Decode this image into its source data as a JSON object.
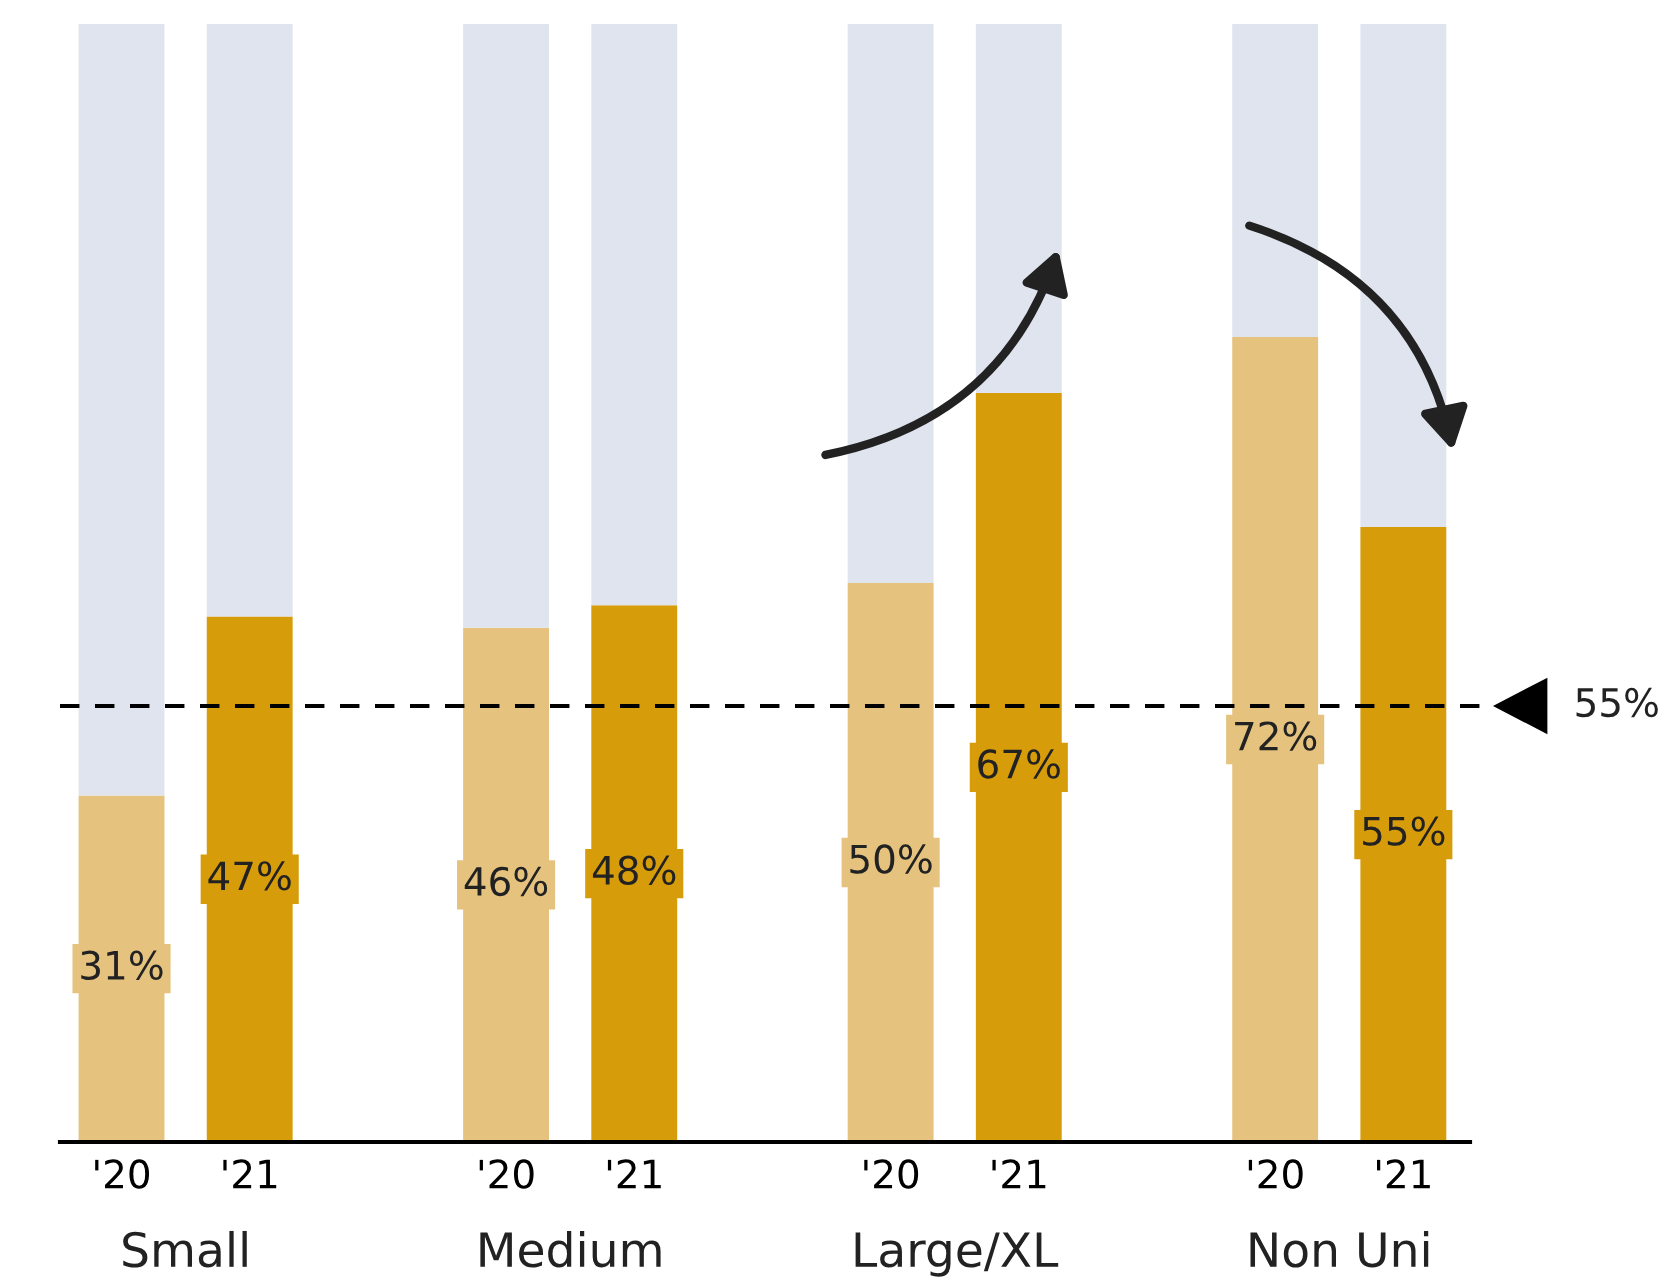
{
  "chart_data": {
    "type": "bar",
    "stacked": true,
    "categories": [
      "'20",
      "'21",
      "'20",
      "'21",
      "'20",
      "'21",
      "'20",
      "'21"
    ],
    "series": [
      {
        "colors": [
          "#e5c37f",
          "#d79c0a",
          "#e5c37f",
          "#d79c0a",
          "#e5c37f",
          "#d79c0a",
          "#e5c37f",
          "#d79c0a"
        ],
        "values": [
          31,
          47,
          46,
          48,
          50,
          67,
          72,
          55
        ],
        "value_labels": [
          "31%",
          "47%",
          "46%",
          "48%",
          "50%",
          "67%",
          "72%",
          "55%"
        ]
      },
      {
        "color": "#dfe4ee",
        "values": [
          69,
          53,
          54,
          52,
          50,
          33,
          28,
          45
        ]
      }
    ],
    "annotations": [
      "Small",
      "Medium",
      "Large/XL",
      "Non Uni",
      "55%"
    ],
    "ylim": [
      0,
      100
    ],
    "ref_lines": [
      {
        "axis": "y",
        "value": 39,
        "color": "#000000",
        "line_style": "dashed"
      }
    ],
    "tick_labels": "x",
    "grid": false,
    "legend": false
  }
}
